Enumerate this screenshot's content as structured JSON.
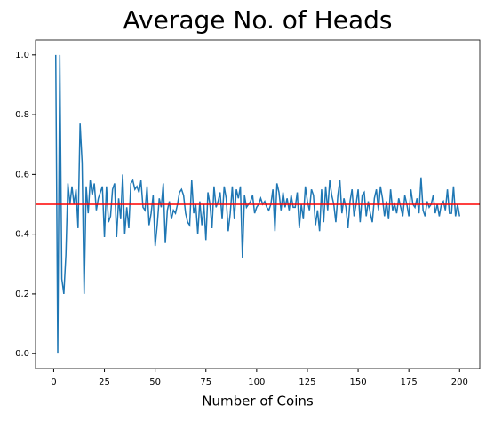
{
  "chart_data": {
    "type": "line",
    "title": "Average No. of Heads",
    "x_label": "Number of Coins",
    "color": "#1f77b4",
    "x": [
      1,
      2,
      3,
      4,
      5,
      6,
      7,
      8,
      9,
      10,
      11,
      12,
      13,
      14,
      15,
      16,
      17,
      18,
      19,
      20,
      21,
      22,
      23,
      24,
      25,
      26,
      27,
      28,
      29,
      30,
      31,
      32,
      33,
      34,
      35,
      36,
      37,
      38,
      39,
      40,
      41,
      42,
      43,
      44,
      45,
      46,
      47,
      48,
      49,
      50,
      51,
      52,
      53,
      54,
      55,
      56,
      57,
      58,
      59,
      60,
      61,
      62,
      63,
      64,
      65,
      66,
      67,
      68,
      69,
      70,
      71,
      72,
      73,
      74,
      75,
      76,
      77,
      78,
      79,
      80,
      81,
      82,
      83,
      84,
      85,
      86,
      87,
      88,
      89,
      90,
      91,
      92,
      93,
      94,
      95,
      96,
      97,
      98,
      99,
      100,
      101,
      102,
      103,
      104,
      105,
      106,
      107,
      108,
      109,
      110,
      111,
      112,
      113,
      114,
      115,
      116,
      117,
      118,
      119,
      120,
      121,
      122,
      123,
      124,
      125,
      126,
      127,
      128,
      129,
      130,
      131,
      132,
      133,
      134,
      135,
      136,
      137,
      138,
      139,
      140,
      141,
      142,
      143,
      144,
      145,
      146,
      147,
      148,
      149,
      150,
      151,
      152,
      153,
      154,
      155,
      156,
      157,
      158,
      159,
      160,
      161,
      162,
      163,
      164,
      165,
      166,
      167,
      168,
      169,
      170,
      171,
      172,
      173,
      174,
      175,
      176,
      177,
      178,
      179,
      180,
      181,
      182,
      183,
      184,
      185,
      186,
      187,
      188,
      189,
      190,
      191,
      192,
      193,
      194,
      195,
      196,
      197,
      198,
      199,
      200
    ],
    "values": [
      1.0,
      0.0,
      1.0,
      0.25,
      0.2,
      0.33,
      0.57,
      0.5,
      0.56,
      0.5,
      0.55,
      0.42,
      0.77,
      0.64,
      0.2,
      0.56,
      0.47,
      0.58,
      0.53,
      0.57,
      0.48,
      0.52,
      0.54,
      0.56,
      0.39,
      0.56,
      0.44,
      0.46,
      0.55,
      0.57,
      0.39,
      0.52,
      0.45,
      0.6,
      0.4,
      0.49,
      0.42,
      0.57,
      0.58,
      0.55,
      0.56,
      0.54,
      0.58,
      0.49,
      0.48,
      0.56,
      0.43,
      0.47,
      0.53,
      0.36,
      0.43,
      0.52,
      0.49,
      0.57,
      0.37,
      0.48,
      0.51,
      0.45,
      0.48,
      0.47,
      0.5,
      0.54,
      0.55,
      0.53,
      0.47,
      0.44,
      0.43,
      0.58,
      0.47,
      0.5,
      0.4,
      0.51,
      0.43,
      0.5,
      0.38,
      0.54,
      0.5,
      0.42,
      0.56,
      0.49,
      0.51,
      0.54,
      0.45,
      0.56,
      0.52,
      0.41,
      0.47,
      0.56,
      0.45,
      0.55,
      0.52,
      0.56,
      0.32,
      0.53,
      0.49,
      0.5,
      0.51,
      0.53,
      0.47,
      0.49,
      0.5,
      0.52,
      0.5,
      0.51,
      0.49,
      0.48,
      0.5,
      0.55,
      0.41,
      0.57,
      0.54,
      0.48,
      0.54,
      0.49,
      0.52,
      0.48,
      0.53,
      0.49,
      0.49,
      0.54,
      0.42,
      0.5,
      0.45,
      0.56,
      0.51,
      0.48,
      0.55,
      0.53,
      0.43,
      0.48,
      0.41,
      0.55,
      0.44,
      0.56,
      0.48,
      0.58,
      0.53,
      0.5,
      0.44,
      0.53,
      0.58,
      0.47,
      0.52,
      0.49,
      0.42,
      0.51,
      0.55,
      0.46,
      0.5,
      0.55,
      0.44,
      0.53,
      0.54,
      0.46,
      0.51,
      0.47,
      0.44,
      0.52,
      0.55,
      0.48,
      0.56,
      0.52,
      0.46,
      0.51,
      0.45,
      0.55,
      0.48,
      0.5,
      0.47,
      0.52,
      0.49,
      0.46,
      0.53,
      0.5,
      0.46,
      0.55,
      0.5,
      0.49,
      0.52,
      0.47,
      0.59,
      0.48,
      0.46,
      0.51,
      0.49,
      0.5,
      0.53,
      0.47,
      0.5,
      0.46,
      0.5,
      0.51,
      0.48,
      0.55,
      0.47,
      0.47,
      0.56,
      0.46,
      0.5,
      0.46
    ],
    "hline": {
      "value": 0.5,
      "color": "#ff0000"
    },
    "xlim": [
      -8.95,
      209.95
    ],
    "xticks": [
      0,
      25,
      50,
      75,
      100,
      125,
      150,
      175,
      200
    ],
    "ylim": [
      -0.05,
      1.05
    ],
    "yticks": [
      {
        "value": 0,
        "label": "0.0"
      },
      0.2,
      0.4,
      0.6,
      0.8,
      {
        "value": 1,
        "label": "1.0"
      }
    ]
  }
}
